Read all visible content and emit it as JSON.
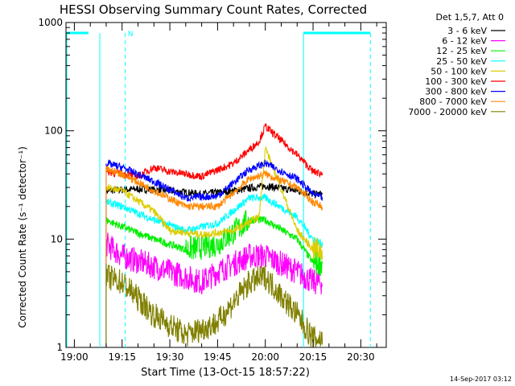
{
  "chart_data": {
    "type": "line",
    "title": "HESSI Observing Summary Count Rates, Corrected",
    "xlabel": "Start Time (13-Oct-15 18:57:22)",
    "ylabel": "Corrected Count Rate (s⁻¹ detector⁻¹)",
    "yscale": "log",
    "ylim": [
      1,
      1000
    ],
    "xlim": [
      "18:57:22",
      "20:38:00"
    ],
    "x_ticks": [
      "19:00",
      "19:15",
      "19:30",
      "19:45",
      "20:00",
      "20:15",
      "20:30"
    ],
    "y_ticks": [
      "1",
      "10",
      "100",
      "1000"
    ],
    "legend_title": "Det 1,5,7, Att 0",
    "legend_placement": "right",
    "footer_date": "14-Sep-2017 03:12",
    "annotations": [
      {
        "text": "N",
        "x": "19:16"
      }
    ],
    "series": [
      {
        "name": "3 - 6 keV",
        "color": "#000000",
        "x": [
          "19:10",
          "19:20",
          "19:30",
          "19:40",
          "19:50",
          "20:00",
          "20:10",
          "20:15",
          "20:18"
        ],
        "values": [
          28,
          29,
          28,
          26,
          28,
          31,
          28,
          26,
          26
        ]
      },
      {
        "name": "6 - 12 keV",
        "color": "#ff00ff",
        "x": [
          "19:10",
          "19:15",
          "19:30",
          "19:40",
          "19:45",
          "19:55",
          "20:00",
          "20:10",
          "20:15",
          "20:18"
        ],
        "values": [
          9,
          7,
          5,
          4,
          5,
          7,
          7,
          5,
          4,
          4
        ]
      },
      {
        "name": "12 - 25 keV",
        "color": "#00ee00",
        "x": [
          "19:10",
          "19:15",
          "19:25",
          "19:35",
          "19:45",
          "19:55",
          "20:00",
          "20:10",
          "20:15",
          "20:18"
        ],
        "values": [
          15,
          13,
          10,
          8,
          9,
          15,
          15,
          10,
          6,
          6
        ]
      },
      {
        "name": "25 - 50 keV",
        "color": "#00ffff",
        "x": [
          "19:10",
          "19:15",
          "19:25",
          "19:35",
          "19:45",
          "19:55",
          "20:00",
          "20:10",
          "20:15",
          "20:18"
        ],
        "values": [
          22,
          20,
          15,
          12,
          14,
          24,
          24,
          16,
          10,
          9
        ]
      },
      {
        "name": "50 - 100 keV",
        "color": "#ddcc00",
        "x": [
          "19:10",
          "19:15",
          "19:25",
          "19:30",
          "19:40",
          "19:50",
          "19:58",
          "20:00",
          "20:10",
          "20:15",
          "20:18"
        ],
        "values": [
          30,
          28,
          18,
          12,
          11,
          12,
          16,
          70,
          12,
          8,
          8
        ]
      },
      {
        "name": "100 - 300 keV",
        "color": "#ff0000",
        "x": [
          "19:10",
          "19:15",
          "19:20",
          "19:25",
          "19:30",
          "19:40",
          "19:50",
          "19:58",
          "20:00",
          "20:10",
          "20:15",
          "20:18"
        ],
        "values": [
          42,
          40,
          38,
          46,
          42,
          38,
          50,
          80,
          110,
          60,
          42,
          40
        ]
      },
      {
        "name": "300 - 800 keV",
        "color": "#0000ff",
        "x": [
          "19:10",
          "19:15",
          "19:25",
          "19:35",
          "19:45",
          "19:55",
          "20:00",
          "20:10",
          "20:15",
          "20:18"
        ],
        "values": [
          50,
          46,
          34,
          24,
          25,
          44,
          50,
          36,
          26,
          24
        ]
      },
      {
        "name": "800 - 7000 keV",
        "color": "#ff8800",
        "x": [
          "19:10",
          "19:15",
          "19:25",
          "19:35",
          "19:45",
          "19:55",
          "20:00",
          "20:10",
          "20:15",
          "20:18"
        ],
        "values": [
          44,
          40,
          28,
          20,
          20,
          36,
          40,
          30,
          22,
          20
        ]
      },
      {
        "name": "7000 - 20000 keV",
        "color": "#808000",
        "x": [
          "19:10",
          "19:15",
          "19:25",
          "19:35",
          "19:45",
          "19:55",
          "20:00",
          "20:10",
          "20:15",
          "20:18"
        ],
        "values": [
          4.5,
          4.0,
          2.0,
          1.3,
          1.7,
          4.0,
          4.5,
          2.0,
          1.2,
          1.2
        ]
      }
    ]
  }
}
